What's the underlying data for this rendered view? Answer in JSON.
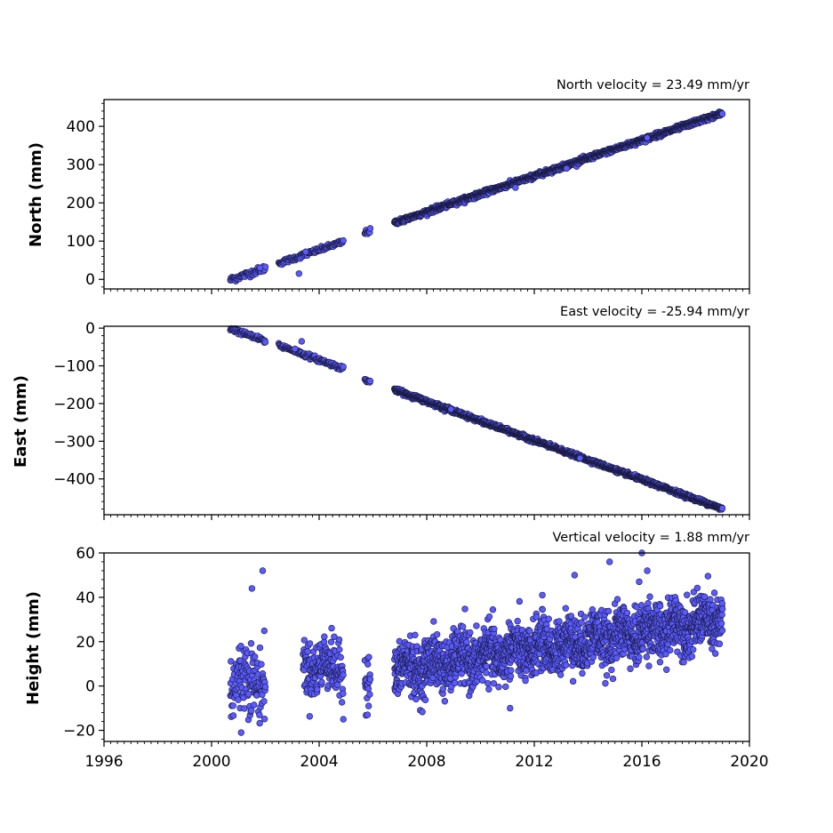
{
  "chart_data": [
    {
      "type": "scatter",
      "panel": "north",
      "ylabel": "North (mm)",
      "velocity_label": "North velocity = 23.49 mm/yr",
      "xlim": [
        1996,
        2020
      ],
      "ylim": [
        -25,
        470
      ],
      "yticks": [
        0,
        100,
        200,
        300,
        400
      ],
      "yminor_step": 20,
      "color": "#5a5aff",
      "edge_color": "#1a1a40",
      "segments": [
        {
          "start": 2000.7,
          "end": 2002.0,
          "y0": -1,
          "slope": 23.49,
          "noise": 4,
          "step": 0.02
        },
        {
          "start": 2002.5,
          "end": 2004.9,
          "y0": 42,
          "slope": 23.49,
          "noise": 3,
          "step": 0.02
        },
        {
          "start": 2005.7,
          "end": 2005.9,
          "y0": 122,
          "slope": 23.49,
          "noise": 3,
          "step": 0.02
        },
        {
          "start": 2006.8,
          "end": 2019.0,
          "y0": 148,
          "slope": 23.49,
          "noise": 3,
          "step": 0.008
        }
      ],
      "outliers": [
        [
          2003.25,
          15
        ],
        [
          2003.5,
          72
        ],
        [
          2001.8,
          30
        ],
        [
          2011.3,
          240
        ],
        [
          2013.2,
          290
        ],
        [
          2016.2,
          370
        ]
      ],
      "series": [
        {
          "name": "North",
          "model": "linear",
          "velocity": 23.49
        }
      ]
    },
    {
      "type": "scatter",
      "panel": "east",
      "ylabel": "East (mm)",
      "velocity_label": "East velocity = -25.94 mm/yr",
      "xlim": [
        1996,
        2020
      ],
      "ylim": [
        -495,
        5
      ],
      "yticks": [
        0,
        -100,
        -200,
        -300,
        -400
      ],
      "yminor_step": 20,
      "color": "#5a5aff",
      "edge_color": "#1a1a40",
      "segments": [
        {
          "start": 2000.7,
          "end": 2002.0,
          "y0": -1,
          "slope": -25.94,
          "noise": 3,
          "step": 0.02
        },
        {
          "start": 2002.5,
          "end": 2004.9,
          "y0": -45,
          "slope": -25.94,
          "noise": 3,
          "step": 0.02
        },
        {
          "start": 2005.7,
          "end": 2005.9,
          "y0": -137,
          "slope": -25.94,
          "noise": 2,
          "step": 0.02
        },
        {
          "start": 2006.8,
          "end": 2019.0,
          "y0": -163,
          "slope": -25.94,
          "noise": 2.5,
          "step": 0.008
        }
      ],
      "outliers": [
        [
          2003.35,
          -35
        ],
        [
          2003.1,
          -55
        ],
        [
          2008.9,
          -215
        ],
        [
          2013.7,
          -345
        ]
      ],
      "series": [
        {
          "name": "East",
          "model": "linear",
          "velocity": -25.94
        }
      ]
    },
    {
      "type": "scatter",
      "panel": "vertical",
      "ylabel": "Height (mm)",
      "velocity_label": "Vertical velocity = 1.88 mm/yr",
      "xlim": [
        1996,
        2020
      ],
      "ylim": [
        -25,
        60
      ],
      "yticks": [
        -20,
        0,
        20,
        40,
        60
      ],
      "yminor_step": 4,
      "xticks": [
        1996,
        2000,
        2004,
        2008,
        2012,
        2016,
        2020
      ],
      "xminor_step": 0.25,
      "color": "#5a5aff",
      "edge_color": "#1a1a40",
      "segments": [
        {
          "start": 2000.7,
          "end": 2002.0,
          "y0": 3,
          "slope": 0,
          "noise": 8,
          "step": 0.01
        },
        {
          "start": 2003.4,
          "end": 2004.9,
          "y0": 9,
          "slope": 0,
          "noise": 6,
          "step": 0.008
        },
        {
          "start": 2005.7,
          "end": 2005.9,
          "y0": 6,
          "slope": 0,
          "noise": 6,
          "step": 0.01
        },
        {
          "start": 2006.8,
          "end": 2019.0,
          "y0": 7,
          "slope": 1.88,
          "noise": 6,
          "step": 0.006
        }
      ],
      "outliers": [
        [
          2001.9,
          52
        ],
        [
          2001.5,
          44
        ],
        [
          2001.1,
          -21
        ],
        [
          2013.5,
          50
        ],
        [
          2014.8,
          56
        ],
        [
          2016.0,
          60
        ],
        [
          2016.2,
          52
        ],
        [
          2012.3,
          41
        ],
        [
          2015.9,
          47
        ],
        [
          2011.1,
          -10
        ],
        [
          2004.9,
          -15
        ],
        [
          2005.8,
          -13
        ]
      ],
      "series": [
        {
          "name": "Vertical",
          "model": "linear",
          "velocity": 1.88
        }
      ]
    }
  ]
}
